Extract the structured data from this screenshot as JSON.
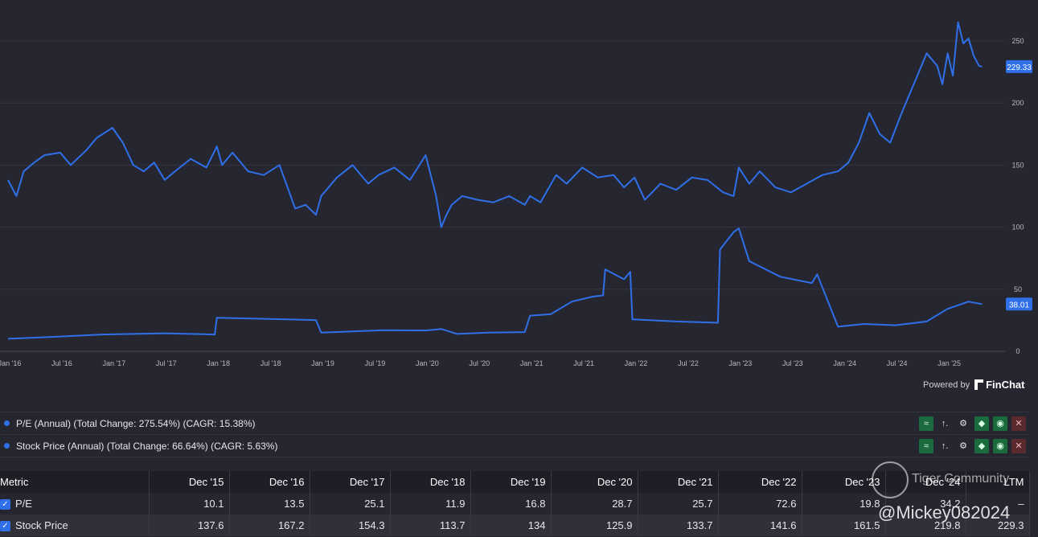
{
  "chart_data": {
    "type": "line",
    "x_ticks": [
      "Jan '16",
      "Jul '16",
      "Jan '17",
      "Jul '17",
      "Jan '18",
      "Jul '18",
      "Jan '19",
      "Jul '19",
      "Jan '20",
      "Jul '20",
      "Jan '21",
      "Jul '21",
      "Jan '22",
      "Jul '22",
      "Jan '23",
      "Jul '23",
      "Jan '24",
      "Jul '24",
      "Jan '25"
    ],
    "y_ticks": [
      "0",
      "50",
      "100",
      "150",
      "200",
      "250"
    ],
    "ylim": [
      0,
      270
    ],
    "xlim": [
      2016.0,
      2025.55
    ],
    "grid": true,
    "line_color": "#2f6fe8",
    "series": [
      {
        "name": "Stock Price",
        "last_label": "229.33",
        "x": [
          2016.0,
          2016.08,
          2016.15,
          2016.25,
          2016.35,
          2016.5,
          2016.6,
          2016.75,
          2016.85,
          2017.0,
          2017.1,
          2017.2,
          2017.3,
          2017.4,
          2017.5,
          2017.6,
          2017.75,
          2017.9,
          2018.0,
          2018.05,
          2018.15,
          2018.3,
          2018.45,
          2018.6,
          2018.75,
          2018.85,
          2018.95,
          2019.0,
          2019.15,
          2019.3,
          2019.45,
          2019.55,
          2019.7,
          2019.85,
          2020.0,
          2020.1,
          2020.15,
          2020.2,
          2020.25,
          2020.35,
          2020.5,
          2020.65,
          2020.8,
          2020.95,
          2021.0,
          2021.1,
          2021.25,
          2021.35,
          2021.5,
          2021.65,
          2021.8,
          2021.9,
          2022.0,
          2022.1,
          2022.25,
          2022.4,
          2022.55,
          2022.7,
          2022.85,
          2022.95,
          2023.0,
          2023.1,
          2023.2,
          2023.35,
          2023.5,
          2023.65,
          2023.8,
          2023.95,
          2024.05,
          2024.15,
          2024.25,
          2024.35,
          2024.45,
          2024.55,
          2024.65,
          2024.8,
          2024.9,
          2024.95,
          2025.0,
          2025.05,
          2025.1,
          2025.15,
          2025.2,
          2025.25,
          2025.3,
          2025.33
        ],
        "y": [
          138,
          125,
          145,
          152,
          158,
          160,
          150,
          162,
          172,
          180,
          168,
          150,
          145,
          152,
          138,
          145,
          155,
          148,
          165,
          150,
          160,
          145,
          142,
          150,
          115,
          118,
          110,
          125,
          140,
          150,
          135,
          142,
          148,
          138,
          158,
          125,
          100,
          110,
          118,
          125,
          122,
          120,
          125,
          118,
          125,
          120,
          142,
          135,
          148,
          140,
          142,
          132,
          140,
          122,
          135,
          130,
          140,
          138,
          128,
          125,
          148,
          135,
          145,
          132,
          128,
          135,
          142,
          145,
          152,
          168,
          192,
          175,
          168,
          190,
          210,
          240,
          230,
          215,
          240,
          222,
          265,
          248,
          252,
          238,
          230,
          229.33
        ]
      },
      {
        "name": "P/E",
        "last_label": "38.01",
        "x": [
          2016.0,
          2016.4,
          2016.9,
          2017.5,
          2017.98,
          2018.0,
          2018.5,
          2018.95,
          2019.0,
          2019.6,
          2020.0,
          2020.15,
          2020.3,
          2020.6,
          2020.95,
          2021.0,
          2021.2,
          2021.4,
          2021.6,
          2021.7,
          2021.72,
          2021.9,
          2021.96,
          2021.98,
          2022.4,
          2022.8,
          2022.82,
          2022.95,
          2023.0,
          2023.1,
          2023.4,
          2023.7,
          2023.75,
          2023.95,
          2024.2,
          2024.5,
          2024.8,
          2025.0,
          2025.2,
          2025.33
        ],
        "y": [
          10.1,
          11.5,
          13.5,
          14.5,
          13.5,
          27,
          26,
          25.1,
          15,
          17,
          16.8,
          18,
          14,
          15,
          15.5,
          28.7,
          30,
          40,
          44,
          45,
          66,
          58,
          64,
          25.7,
          24,
          23,
          82,
          96,
          99,
          72.6,
          60,
          55,
          62,
          19.8,
          22,
          21,
          24,
          34.2,
          40,
          38.01
        ]
      }
    ]
  },
  "powered": {
    "label": "Powered by",
    "brand": "FinChat"
  },
  "legend": [
    {
      "text": "P/E (Annual) (Total Change: 275.54%) (CAGR: 15.38%)"
    },
    {
      "text": "Stock Price (Annual) (Total Change: 66.64%) (CAGR: 5.63%)"
    }
  ],
  "legend_tools": {
    "trend": "≈",
    "axis": "↑.",
    "gear": "⚙",
    "tag": "◆",
    "eye": "◉",
    "close": "✕"
  },
  "table": {
    "header": [
      "Metric",
      "Dec '15",
      "Dec '16",
      "Dec '17",
      "Dec '18",
      "Dec '19",
      "Dec '20",
      "Dec '21",
      "Dec '22",
      "Dec '23",
      "Dec '24",
      "LTM"
    ],
    "rows": [
      {
        "label": "P/E",
        "values": [
          "10.1",
          "13.5",
          "25.1",
          "11.9",
          "16.8",
          "28.7",
          "25.7",
          "72.6",
          "19.8",
          "34.2",
          "–"
        ]
      },
      {
        "label": "Stock Price",
        "values": [
          "137.6",
          "167.2",
          "154.3",
          "113.7",
          "134",
          "125.9",
          "133.7",
          "141.6",
          "161.5",
          "219.8",
          "229.3"
        ]
      }
    ],
    "check": "✓"
  },
  "watermark": {
    "line1": "Tiger Community",
    "line2": "@Mickey082024"
  }
}
